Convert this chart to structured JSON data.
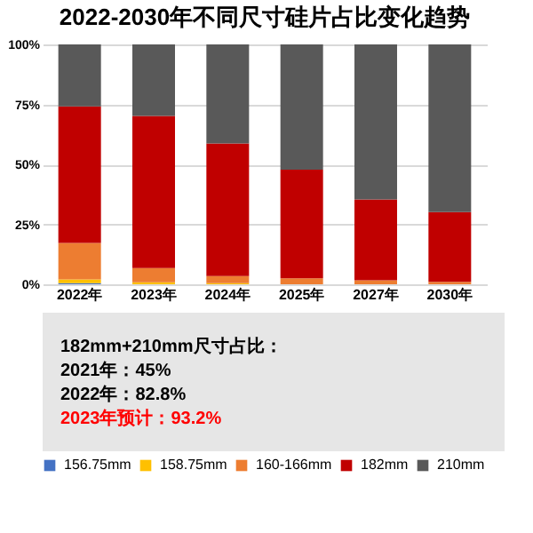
{
  "chart_data": {
    "type": "bar",
    "stacked": true,
    "title": "2022-2030年不同尺寸硅片占比变化趋势",
    "categories": [
      "2022年",
      "2023年",
      "2024年",
      "2025年",
      "2027年",
      "2030年"
    ],
    "series": [
      {
        "name": "156.75mm",
        "color": "#4472c4",
        "values": [
          0.5,
          0,
          0,
          0,
          0,
          0
        ]
      },
      {
        "name": "158.75mm",
        "color": "#ffc000",
        "values": [
          1.5,
          0.8,
          0.5,
          0,
          0,
          0
        ]
      },
      {
        "name": "160-166mm",
        "color": "#ed7d31",
        "values": [
          15.2,
          6.0,
          2.9,
          2.5,
          1.7,
          1.0
        ]
      },
      {
        "name": "182mm",
        "color": "#c00000",
        "values": [
          57.0,
          63.4,
          55.3,
          45.3,
          33.7,
          29.1
        ]
      },
      {
        "name": "210mm",
        "color": "#595959",
        "values": [
          25.8,
          29.8,
          41.3,
          52.2,
          64.6,
          69.9
        ]
      }
    ],
    "ylim": [
      0,
      100
    ],
    "yticks": [
      {
        "value": 0,
        "label": "0%"
      },
      {
        "value": 25,
        "label": "25%"
      },
      {
        "value": 50,
        "label": "50%"
      },
      {
        "value": 75,
        "label": "75%"
      },
      {
        "value": 100,
        "label": "100%"
      }
    ],
    "grid": "y",
    "legend": "bottom",
    "annotations": [
      "182mm+210mm尺寸占比：",
      "2021年：45%",
      "2022年：82.8%",
      "2023年预计：93.2%"
    ]
  }
}
